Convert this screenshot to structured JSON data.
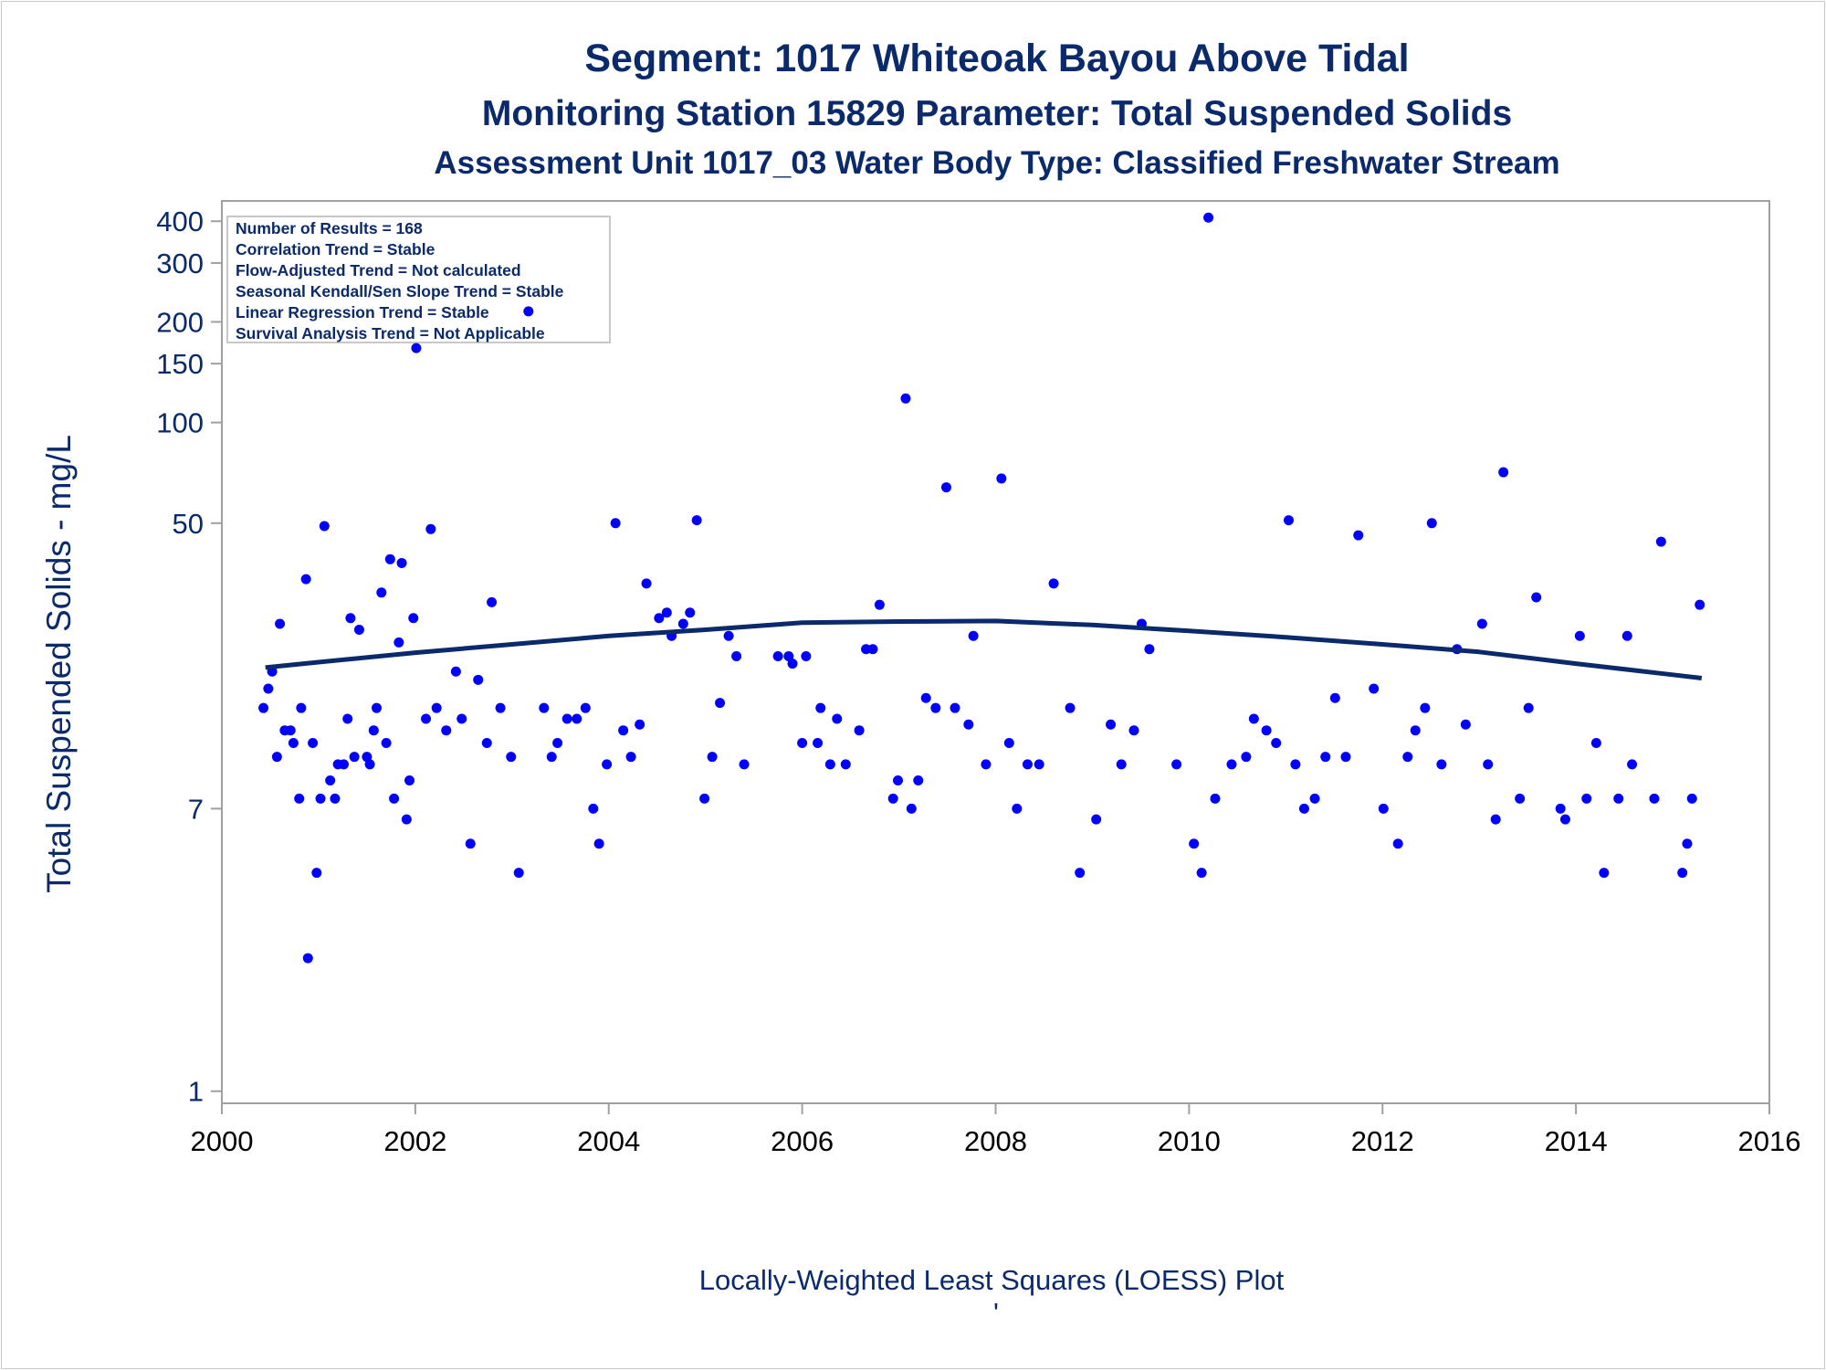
{
  "titles": {
    "line1": "Segment: 1017  Whiteoak Bayou Above Tidal",
    "line2": "Monitoring Station 15829 Parameter: Total Suspended Solids",
    "line3": "Assessment Unit 1017_03   Water Body Type: Classified Freshwater Stream"
  },
  "caption": "Locally-Weighted Least Squares (LOESS) Plot",
  "caption_mark": "'",
  "stats_box": [
    "Number of Results = 168",
    "Correlation Trend = Stable",
    "Flow-Adjusted Trend = Not calculated",
    "Seasonal Kendall/Sen Slope Trend = Stable",
    "Linear Regression Trend = Stable",
    "Survival Analysis Trend = Not Applicable"
  ],
  "colors": {
    "text": "#0b2a6b",
    "points": "#0000ff",
    "loess": "#0b2a6b",
    "axis": "#a0a0a0"
  },
  "chart_data": {
    "type": "scatter",
    "title": "Segment: 1017  Whiteoak Bayou Above Tidal",
    "ylabel": "Total Suspended Solids - mg/L",
    "xlabel": "",
    "y_scale": "log",
    "xlim": [
      2000,
      2016
    ],
    "ylim": [
      0.92,
      460
    ],
    "x_ticks": [
      2000,
      2002,
      2004,
      2006,
      2008,
      2010,
      2012,
      2014,
      2016
    ],
    "y_ticks": [
      1,
      7,
      50,
      100,
      150,
      200,
      300,
      400
    ],
    "grid": false,
    "series": [
      {
        "marker": "dot",
        "points": [
          [
            2000.43,
            14
          ],
          [
            2000.48,
            16
          ],
          [
            2000.52,
            18
          ],
          [
            2000.57,
            10
          ],
          [
            2000.6,
            25
          ],
          [
            2000.65,
            12
          ],
          [
            2000.71,
            12
          ],
          [
            2000.74,
            11
          ],
          [
            2000.8,
            7.5
          ],
          [
            2000.82,
            14
          ],
          [
            2000.87,
            34
          ],
          [
            2000.89,
            2.5
          ],
          [
            2000.94,
            11
          ],
          [
            2000.98,
            4.5
          ],
          [
            2001.02,
            7.5
          ],
          [
            2001.06,
            49
          ],
          [
            2001.12,
            8.5
          ],
          [
            2001.17,
            7.5
          ],
          [
            2001.2,
            9.5
          ],
          [
            2001.26,
            9.5
          ],
          [
            2001.3,
            13
          ],
          [
            2001.33,
            26
          ],
          [
            2001.37,
            10
          ],
          [
            2001.42,
            24
          ],
          [
            2001.5,
            10
          ],
          [
            2001.53,
            9.5
          ],
          [
            2001.57,
            12
          ],
          [
            2001.6,
            14
          ],
          [
            2001.65,
            31
          ],
          [
            2001.7,
            11
          ],
          [
            2001.74,
            39
          ],
          [
            2001.78,
            7.5
          ],
          [
            2001.83,
            22
          ],
          [
            2001.86,
            38
          ],
          [
            2001.91,
            6.5
          ],
          [
            2001.94,
            8.5
          ],
          [
            2001.98,
            26
          ],
          [
            2002.01,
            167
          ],
          [
            2002.16,
            48
          ],
          [
            2002.11,
            13
          ],
          [
            2002.22,
            14
          ],
          [
            2002.32,
            12
          ],
          [
            2002.42,
            18
          ],
          [
            2002.48,
            13
          ],
          [
            2002.57,
            5.5
          ],
          [
            2002.65,
            17
          ],
          [
            2002.74,
            11
          ],
          [
            2002.79,
            29
          ],
          [
            2002.88,
            14
          ],
          [
            2002.99,
            10
          ],
          [
            2003.07,
            4.5
          ],
          [
            2003.17,
            215
          ],
          [
            2003.33,
            14
          ],
          [
            2003.41,
            10
          ],
          [
            2003.47,
            11
          ],
          [
            2003.57,
            13
          ],
          [
            2003.67,
            13
          ],
          [
            2003.76,
            14
          ],
          [
            2003.84,
            7
          ],
          [
            2003.9,
            5.5
          ],
          [
            2003.98,
            9.5
          ],
          [
            2004.07,
            50
          ],
          [
            2004.15,
            12
          ],
          [
            2004.23,
            10
          ],
          [
            2004.32,
            12.5
          ],
          [
            2004.39,
            33
          ],
          [
            2004.52,
            26
          ],
          [
            2004.6,
            27
          ],
          [
            2004.65,
            23
          ],
          [
            2004.77,
            25
          ],
          [
            2004.84,
            27
          ],
          [
            2004.91,
            51
          ],
          [
            2004.99,
            7.5
          ],
          [
            2005.07,
            10
          ],
          [
            2005.15,
            14.5
          ],
          [
            2005.24,
            23
          ],
          [
            2005.32,
            20
          ],
          [
            2005.4,
            9.5
          ],
          [
            2005.75,
            20
          ],
          [
            2005.86,
            20
          ],
          [
            2005.9,
            19
          ],
          [
            2006.0,
            11
          ],
          [
            2006.04,
            20
          ],
          [
            2006.16,
            11
          ],
          [
            2006.19,
            14
          ],
          [
            2006.29,
            9.5
          ],
          [
            2006.36,
            13
          ],
          [
            2006.45,
            9.5
          ],
          [
            2006.59,
            12
          ],
          [
            2006.66,
            21
          ],
          [
            2006.73,
            21
          ],
          [
            2006.8,
            28.5
          ],
          [
            2006.94,
            7.5
          ],
          [
            2006.99,
            8.5
          ],
          [
            2007.07,
            118
          ],
          [
            2007.13,
            7
          ],
          [
            2007.2,
            8.5
          ],
          [
            2007.28,
            15
          ],
          [
            2007.38,
            14
          ],
          [
            2007.49,
            64
          ],
          [
            2007.58,
            14
          ],
          [
            2007.72,
            12.5
          ],
          [
            2007.77,
            23
          ],
          [
            2007.9,
            9.5
          ],
          [
            2008.06,
            68
          ],
          [
            2008.14,
            11
          ],
          [
            2008.22,
            7
          ],
          [
            2008.33,
            9.5
          ],
          [
            2008.45,
            9.5
          ],
          [
            2008.6,
            33
          ],
          [
            2008.77,
            14
          ],
          [
            2008.87,
            4.5
          ],
          [
            2009.04,
            6.5
          ],
          [
            2009.19,
            12.5
          ],
          [
            2009.3,
            9.5
          ],
          [
            2009.43,
            12
          ],
          [
            2009.51,
            25
          ],
          [
            2009.59,
            21
          ],
          [
            2009.87,
            9.5
          ],
          [
            2010.05,
            5.5
          ],
          [
            2010.13,
            4.5
          ],
          [
            2010.2,
            410
          ],
          [
            2010.27,
            7.5
          ],
          [
            2010.44,
            9.5
          ],
          [
            2010.59,
            10
          ],
          [
            2010.67,
            13
          ],
          [
            2010.8,
            12
          ],
          [
            2010.9,
            11
          ],
          [
            2011.03,
            51
          ],
          [
            2011.1,
            9.5
          ],
          [
            2011.19,
            7
          ],
          [
            2011.3,
            7.5
          ],
          [
            2011.41,
            10
          ],
          [
            2011.51,
            15
          ],
          [
            2011.62,
            10
          ],
          [
            2011.75,
            46
          ],
          [
            2011.91,
            16
          ],
          [
            2012.01,
            7
          ],
          [
            2012.16,
            5.5
          ],
          [
            2012.26,
            10
          ],
          [
            2012.34,
            12
          ],
          [
            2012.44,
            14
          ],
          [
            2012.51,
            50
          ],
          [
            2012.61,
            9.5
          ],
          [
            2012.77,
            21
          ],
          [
            2012.86,
            12.5
          ],
          [
            2013.03,
            25
          ],
          [
            2013.09,
            9.5
          ],
          [
            2013.17,
            6.5
          ],
          [
            2013.25,
            71
          ],
          [
            2013.42,
            7.5
          ],
          [
            2013.51,
            14
          ],
          [
            2013.59,
            30
          ],
          [
            2013.84,
            7
          ],
          [
            2013.89,
            6.5
          ],
          [
            2014.04,
            23
          ],
          [
            2014.11,
            7.5
          ],
          [
            2014.21,
            11
          ],
          [
            2014.29,
            4.5
          ],
          [
            2014.44,
            7.5
          ],
          [
            2014.53,
            23
          ],
          [
            2014.58,
            9.5
          ],
          [
            2014.81,
            7.5
          ],
          [
            2014.88,
            44
          ],
          [
            2015.1,
            4.5
          ],
          [
            2015.15,
            5.5
          ],
          [
            2015.2,
            7.5
          ],
          [
            2015.28,
            28.5
          ]
        ]
      },
      {
        "marker": "line",
        "points": [
          [
            2000.45,
            18.5
          ],
          [
            2001.0,
            19.2
          ],
          [
            2002.0,
            20.5
          ],
          [
            2003.0,
            21.7
          ],
          [
            2004.0,
            23.0
          ],
          [
            2005.0,
            24.0
          ],
          [
            2006.0,
            25.2
          ],
          [
            2007.0,
            25.4
          ],
          [
            2008.0,
            25.5
          ],
          [
            2009.0,
            24.8
          ],
          [
            2010.0,
            23.8
          ],
          [
            2011.0,
            22.8
          ],
          [
            2012.0,
            21.7
          ],
          [
            2013.0,
            20.6
          ],
          [
            2014.0,
            19.0
          ],
          [
            2015.0,
            17.6
          ],
          [
            2015.3,
            17.2
          ]
        ]
      }
    ]
  }
}
